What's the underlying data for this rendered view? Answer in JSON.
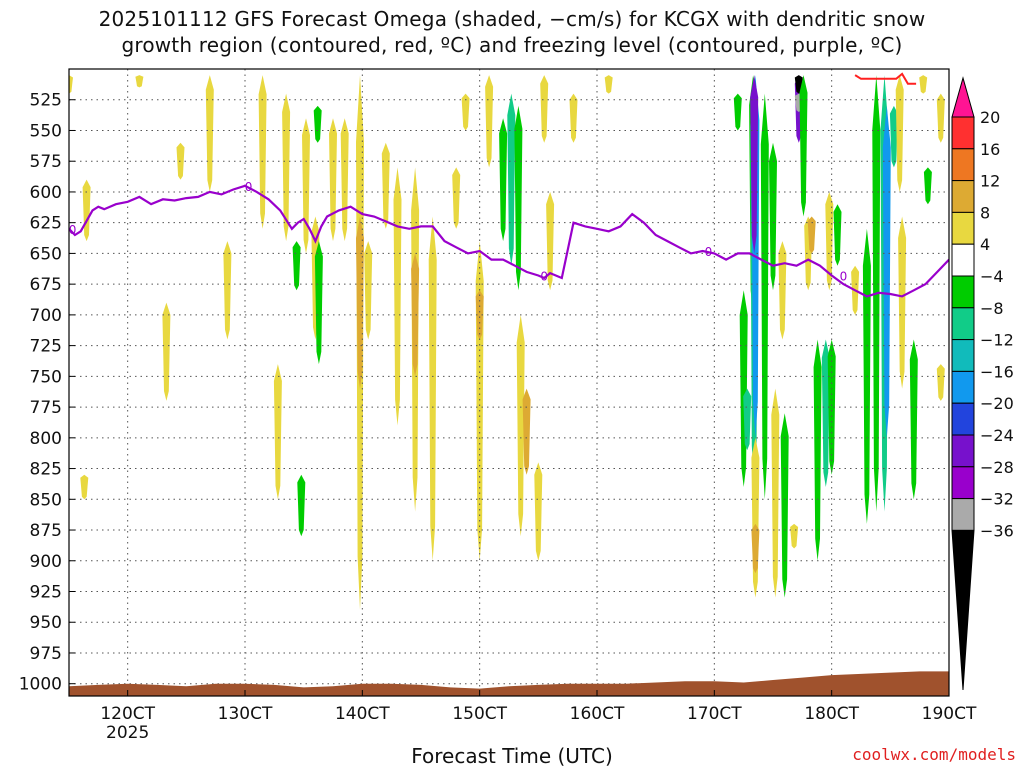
{
  "title": {
    "line1": "2025101112 GFS Forecast Omega (shaded, −cm/s) for KCGX with dendritic snow",
    "line2": "growth region (contoured, red, ºC) and freezing level (contoured, purple, ºC)"
  },
  "credit": "coolwx.com/models",
  "chart_data": {
    "type": "heatmap",
    "xlabel": "Forecast Time (UTC)",
    "xlim": [
      115,
      190
    ],
    "x_ticks": [
      {
        "value": 120,
        "label": "120CT",
        "sub": "2025"
      },
      {
        "value": 130,
        "label": "130CT"
      },
      {
        "value": 140,
        "label": "140CT"
      },
      {
        "value": 150,
        "label": "150CT"
      },
      {
        "value": 160,
        "label": "160CT"
      },
      {
        "value": 170,
        "label": "170CT"
      },
      {
        "value": 180,
        "label": "180CT"
      },
      {
        "value": 190,
        "label": "190CT"
      }
    ],
    "ylim": [
      1010,
      500
    ],
    "y_ticks": [
      525,
      550,
      575,
      600,
      625,
      650,
      675,
      700,
      725,
      750,
      775,
      800,
      825,
      850,
      875,
      900,
      925,
      950,
      975,
      1000
    ],
    "colorbar": {
      "levels": [
        "20",
        "16",
        "12",
        "8",
        "4",
        "−4",
        "−8",
        "−12",
        "−16",
        "−20",
        "−24",
        "−28",
        "−32",
        "−36"
      ],
      "colors": [
        "#ff1493",
        "#ff3030",
        "#ee7722",
        "#ddaa33",
        "#e8d840",
        "#ffffff",
        "#00cc00",
        "#11cc88",
        "#11bbbb",
        "#1199ee",
        "#2244dd",
        "#7711cc",
        "#9900cc",
        "#aaaaaa",
        "#000000"
      ]
    },
    "omega_cells": [
      {
        "t": 115.0,
        "p": [
          505,
          520
        ],
        "v": 5
      },
      {
        "t": 116.5,
        "p": [
          590,
          640
        ],
        "v": 5
      },
      {
        "t": 116.3,
        "p": [
          830,
          850
        ],
        "v": 5
      },
      {
        "t": 121.0,
        "p": [
          505,
          515
        ],
        "v": 5
      },
      {
        "t": 123.3,
        "p": [
          690,
          770
        ],
        "v": 5
      },
      {
        "t": 124.5,
        "p": [
          560,
          590
        ],
        "v": 5
      },
      {
        "t": 127.0,
        "p": [
          505,
          600
        ],
        "v": 5
      },
      {
        "t": 128.5,
        "p": [
          640,
          720
        ],
        "v": 5
      },
      {
        "t": 131.5,
        "p": [
          505,
          630
        ],
        "v": 5
      },
      {
        "t": 132.8,
        "p": [
          740,
          850
        ],
        "v": 5
      },
      {
        "t": 133.5,
        "p": [
          520,
          640
        ],
        "v": 5
      },
      {
        "t": 134.4,
        "p": [
          640,
          680
        ],
        "v": -6
      },
      {
        "t": 134.8,
        "p": [
          830,
          880
        ],
        "v": -6
      },
      {
        "t": 135.2,
        "p": [
          540,
          650
        ],
        "v": 5
      },
      {
        "t": 136.0,
        "p": [
          620,
          720
        ],
        "v": 5
      },
      {
        "t": 136.3,
        "p": [
          640,
          740
        ],
        "v": -6
      },
      {
        "t": 136.2,
        "p": [
          530,
          560
        ],
        "v": -6
      },
      {
        "t": 137.5,
        "p": [
          540,
          640
        ],
        "v": 5
      },
      {
        "t": 138.5,
        "p": [
          540,
          640
        ],
        "v": 5
      },
      {
        "t": 139.8,
        "p": [
          505,
          940
        ],
        "v": 5
      },
      {
        "t": 139.8,
        "p": [
          620,
          760
        ],
        "v": 9
      },
      {
        "t": 140.5,
        "p": [
          640,
          720
        ],
        "v": 5
      },
      {
        "t": 142.0,
        "p": [
          560,
          630
        ],
        "v": 5
      },
      {
        "t": 143.0,
        "p": [
          580,
          790
        ],
        "v": 5
      },
      {
        "t": 144.5,
        "p": [
          580,
          860
        ],
        "v": 5
      },
      {
        "t": 144.5,
        "p": [
          650,
          750
        ],
        "v": 9
      },
      {
        "t": 146.0,
        "p": [
          620,
          900
        ],
        "v": 5
      },
      {
        "t": 148.0,
        "p": [
          580,
          630
        ],
        "v": 5
      },
      {
        "t": 148.8,
        "p": [
          520,
          550
        ],
        "v": 5
      },
      {
        "t": 150.0,
        "p": [
          640,
          900
        ],
        "v": 5
      },
      {
        "t": 150.0,
        "p": [
          680,
          720
        ],
        "v": 9
      },
      {
        "t": 150.8,
        "p": [
          505,
          580
        ],
        "v": 5
      },
      {
        "t": 152.0,
        "p": [
          540,
          640
        ],
        "v": -7
      },
      {
        "t": 152.7,
        "p": [
          520,
          660
        ],
        "v": -10
      },
      {
        "t": 153.3,
        "p": [
          530,
          680
        ],
        "v": -6
      },
      {
        "t": 153.5,
        "p": [
          700,
          880
        ],
        "v": 5
      },
      {
        "t": 154.0,
        "p": [
          760,
          830
        ],
        "v": 9
      },
      {
        "t": 155.0,
        "p": [
          820,
          900
        ],
        "v": 5
      },
      {
        "t": 155.5,
        "p": [
          505,
          560
        ],
        "v": 5
      },
      {
        "t": 156.0,
        "p": [
          600,
          680
        ],
        "v": 5
      },
      {
        "t": 158.0,
        "p": [
          520,
          560
        ],
        "v": 5
      },
      {
        "t": 161.0,
        "p": [
          505,
          520
        ],
        "v": 5
      },
      {
        "t": 172.0,
        "p": [
          520,
          550
        ],
        "v": -6
      },
      {
        "t": 172.5,
        "p": [
          680,
          840
        ],
        "v": -6
      },
      {
        "t": 172.8,
        "p": [
          760,
          810
        ],
        "v": -10
      },
      {
        "t": 173.3,
        "p": [
          505,
          700
        ],
        "v": -6
      },
      {
        "t": 173.4,
        "p": [
          505,
          840
        ],
        "v": -10
      },
      {
        "t": 173.5,
        "p": [
          505,
          800
        ],
        "v": -18
      },
      {
        "t": 173.4,
        "p": [
          505,
          650
        ],
        "v": -26
      },
      {
        "t": 173.5,
        "p": [
          800,
          930
        ],
        "v": 5
      },
      {
        "t": 173.5,
        "p": [
          870,
          910
        ],
        "v": 9
      },
      {
        "t": 174.3,
        "p": [
          520,
          850
        ],
        "v": -6
      },
      {
        "t": 175.0,
        "p": [
          560,
          680
        ],
        "v": -6
      },
      {
        "t": 175.2,
        "p": [
          760,
          930
        ],
        "v": 5
      },
      {
        "t": 175.8,
        "p": [
          640,
          720
        ],
        "v": 5
      },
      {
        "t": 176.0,
        "p": [
          780,
          930
        ],
        "v": -6
      },
      {
        "t": 176.8,
        "p": [
          870,
          890
        ],
        "v": 5
      },
      {
        "t": 177.2,
        "p": [
          505,
          560
        ],
        "v": -26
      },
      {
        "t": 177.2,
        "p": [
          505,
          520
        ],
        "v": -38
      },
      {
        "t": 177.2,
        "p": [
          520,
          535
        ],
        "v": -34
      },
      {
        "t": 177.6,
        "p": [
          505,
          620
        ],
        "v": -6
      },
      {
        "t": 178.0,
        "p": [
          620,
          680
        ],
        "v": 5
      },
      {
        "t": 178.3,
        "p": [
          620,
          650
        ],
        "v": 9
      },
      {
        "t": 178.8,
        "p": [
          720,
          900
        ],
        "v": -6
      },
      {
        "t": 179.5,
        "p": [
          720,
          840
        ],
        "v": -10
      },
      {
        "t": 179.8,
        "p": [
          600,
          680
        ],
        "v": 5
      },
      {
        "t": 180.0,
        "p": [
          720,
          830
        ],
        "v": -6
      },
      {
        "t": 180.5,
        "p": [
          610,
          660
        ],
        "v": -6
      },
      {
        "t": 182.0,
        "p": [
          660,
          700
        ],
        "v": 5
      },
      {
        "t": 183.0,
        "p": [
          630,
          870
        ],
        "v": -6
      },
      {
        "t": 183.8,
        "p": [
          505,
          860
        ],
        "v": -6
      },
      {
        "t": 184.5,
        "p": [
          505,
          860
        ],
        "v": -10
      },
      {
        "t": 184.7,
        "p": [
          530,
          800
        ],
        "v": -17
      },
      {
        "t": 185.3,
        "p": [
          530,
          580
        ],
        "v": -10
      },
      {
        "t": 185.8,
        "p": [
          505,
          600
        ],
        "v": 5
      },
      {
        "t": 186.0,
        "p": [
          620,
          760
        ],
        "v": 5
      },
      {
        "t": 187.0,
        "p": [
          720,
          850
        ],
        "v": -6
      },
      {
        "t": 187.8,
        "p": [
          505,
          520
        ],
        "v": 5
      },
      {
        "t": 188.2,
        "p": [
          580,
          610
        ],
        "v": -6
      },
      {
        "t": 189.3,
        "p": [
          520,
          560
        ],
        "v": 5
      },
      {
        "t": 189.3,
        "p": [
          740,
          770
        ],
        "v": 5
      }
    ],
    "freezing_level": {
      "label": "0",
      "t": [
        115,
        115.5,
        116,
        117,
        117.5,
        118,
        119,
        120,
        121,
        122,
        123,
        124,
        125,
        126,
        127,
        128,
        129,
        130,
        131,
        132,
        133,
        134,
        134.5,
        135,
        135.5,
        136,
        136.5,
        137,
        138,
        139,
        140,
        141,
        142,
        143,
        144,
        145,
        146,
        147,
        148,
        149,
        150,
        151,
        152,
        153,
        154,
        155,
        155.5,
        156,
        157,
        158,
        159,
        160,
        161,
        162,
        163,
        164,
        165,
        166,
        167,
        168,
        169,
        170,
        171,
        172,
        173,
        174,
        175,
        176,
        177,
        178,
        179,
        180,
        181,
        182,
        183,
        184,
        185,
        186,
        187,
        188,
        189,
        190
      ],
      "p": [
        630,
        635,
        632,
        615,
        612,
        614,
        610,
        608,
        604,
        610,
        606,
        607,
        605,
        604,
        600,
        602,
        598,
        595,
        600,
        606,
        615,
        630,
        625,
        622,
        630,
        640,
        628,
        620,
        615,
        612,
        618,
        620,
        624,
        628,
        630,
        628,
        628,
        640,
        645,
        650,
        648,
        655,
        655,
        660,
        665,
        668,
        670,
        666,
        670,
        625,
        628,
        630,
        632,
        628,
        618,
        625,
        635,
        640,
        645,
        650,
        648,
        650,
        655,
        650,
        650,
        655,
        660,
        658,
        660,
        655,
        660,
        668,
        675,
        680,
        685,
        682,
        683,
        685,
        680,
        675,
        665,
        655
      ]
    },
    "ground_pressure": [
      1002,
      1001,
      1000,
      1001,
      1002,
      1000,
      1000,
      1001,
      1003,
      1002,
      1000,
      1000,
      1001,
      1003,
      1004,
      1002,
      1001,
      1000,
      1000,
      1000,
      999,
      998,
      998,
      999,
      997,
      995,
      993,
      992,
      991,
      990,
      990
    ],
    "dgz_contour": {
      "t": [
        182.0,
        182.5,
        184.0,
        185.5,
        186.0,
        186.5,
        187.2
      ],
      "p": [
        505,
        508,
        508,
        508,
        504,
        512,
        512
      ]
    }
  }
}
